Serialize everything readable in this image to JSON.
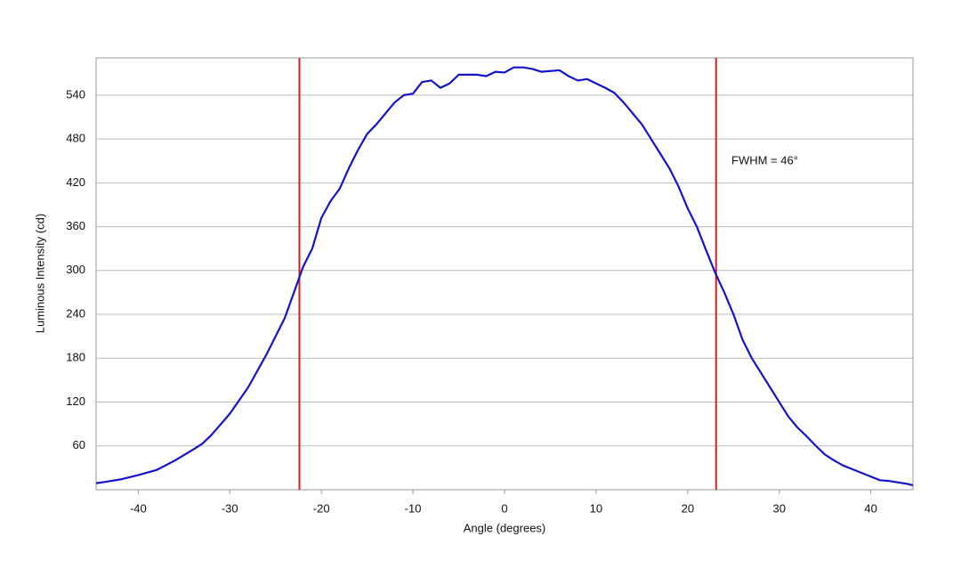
{
  "chart_data": {
    "type": "line",
    "x_label": "Angle (degrees)",
    "y_label": "Luminous Intensity (cd)",
    "annotation": "FWHM = 46°",
    "x": [
      -44.6,
      -44,
      -42,
      -40,
      -38,
      -36,
      -34,
      -33,
      -32,
      -30,
      -28,
      -26,
      -24,
      -22,
      -21,
      -20,
      -19,
      -18,
      -17,
      -16,
      -15,
      -14,
      -13,
      -12,
      -11,
      -10,
      -9,
      -8,
      -7,
      -6,
      -5,
      -4,
      -3,
      -2,
      -1,
      0,
      1,
      2,
      3,
      4,
      5,
      6,
      7,
      8,
      9,
      10,
      11,
      12,
      13,
      14,
      15,
      16,
      17,
      18,
      19,
      20,
      21,
      22,
      23,
      24,
      25,
      26,
      27,
      28,
      29,
      30,
      31,
      32,
      33,
      34,
      35,
      36,
      37,
      38,
      39,
      40,
      41,
      42,
      43,
      44,
      44.6
    ],
    "series": [
      {
        "color": "#1414cc",
        "values": [
          9,
          10,
          14,
          20,
          27,
          40,
          55,
          63,
          75,
          104,
          140,
          185,
          235,
          305,
          330,
          372,
          395,
          412,
          440,
          465,
          487,
          500,
          515,
          530,
          540,
          542,
          558,
          560,
          550,
          556,
          568,
          568,
          568,
          566,
          572,
          571,
          578,
          578,
          576,
          572,
          573,
          574,
          566,
          560,
          562,
          556,
          550,
          543,
          530,
          515,
          500,
          480,
          460,
          440,
          415,
          385,
          360,
          328,
          297,
          270,
          240,
          205,
          180,
          160,
          140,
          120,
          100,
          85,
          73,
          60,
          48,
          40,
          33,
          28,
          23,
          18,
          13,
          12,
          10,
          8,
          6
        ]
      }
    ],
    "markers": [
      -22.4,
      23.1
    ],
    "marker_color": "#d42020",
    "xlim": [
      -44.6,
      44.6
    ],
    "ylim": [
      0,
      591
    ],
    "xticks": [
      -40,
      -30,
      -20,
      -10,
      0,
      10,
      20,
      30,
      40
    ],
    "yticks": [
      60,
      120,
      180,
      240,
      300,
      360,
      420,
      480,
      540
    ],
    "grid": true
  }
}
